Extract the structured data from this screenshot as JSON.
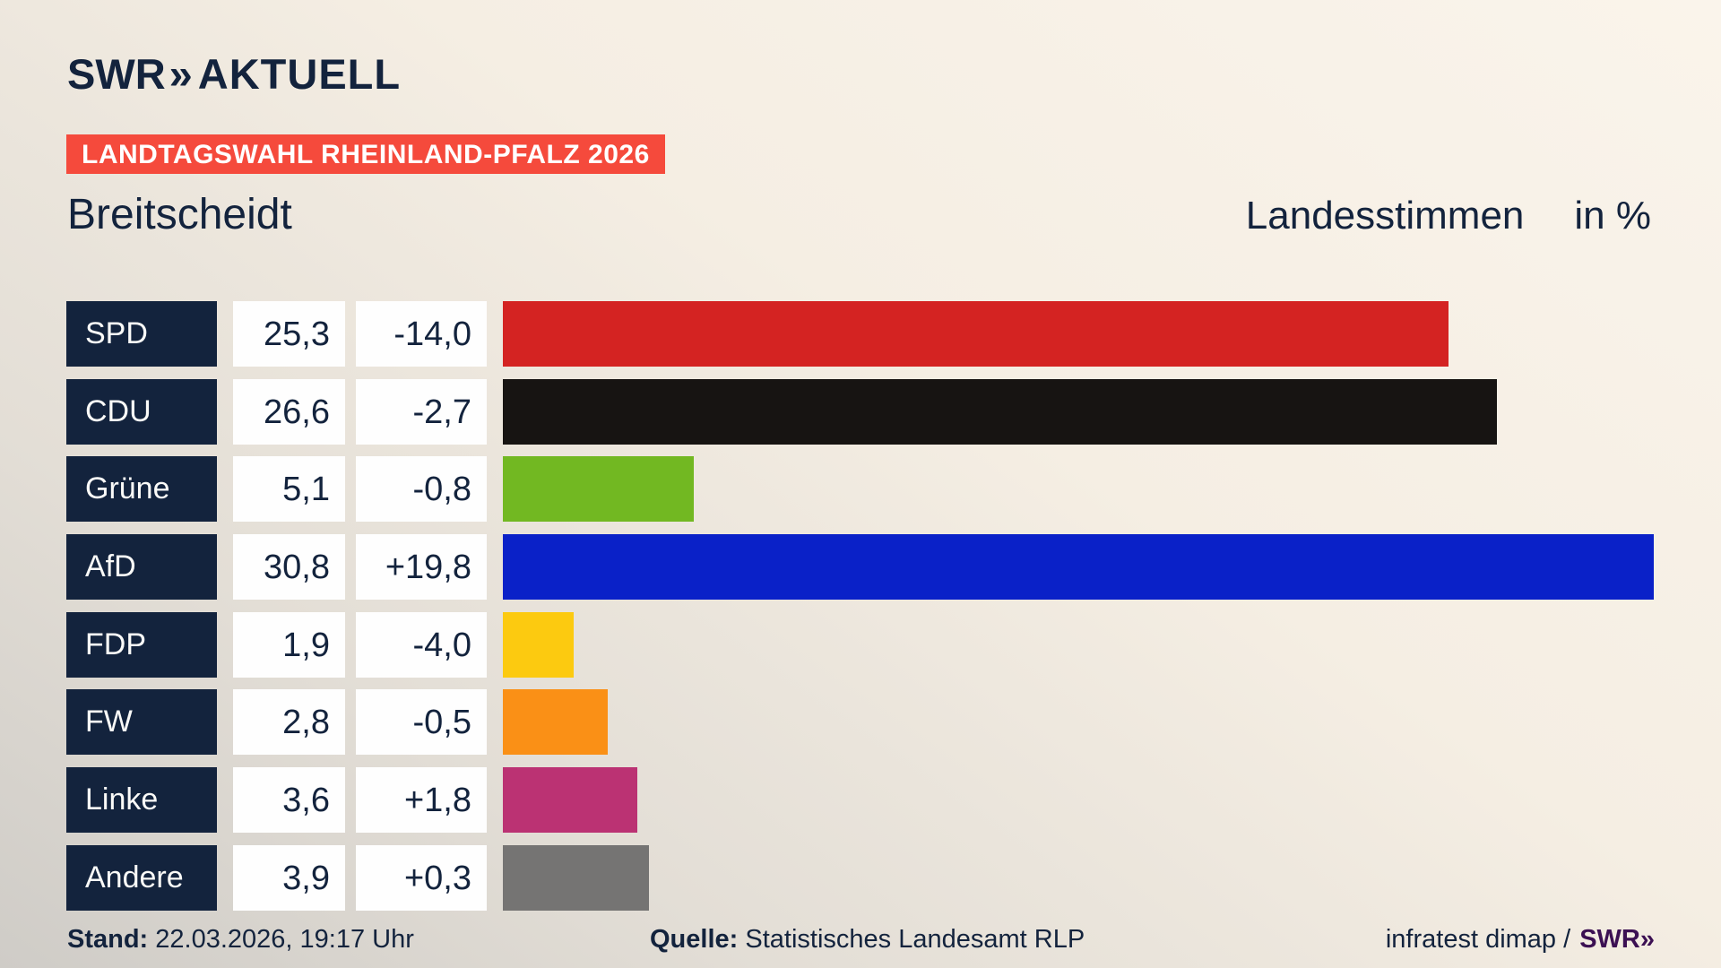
{
  "brand": {
    "name": "SWR",
    "chevrons": "»",
    "suffix": "AKTUELL"
  },
  "banner": {
    "label": "LANDTAGSWAHL RHEINLAND-PFALZ 2026",
    "bg": "#f54a3c"
  },
  "header": {
    "title": "Breitscheidt",
    "series_label": "Landesstimmen",
    "unit_label": "in %"
  },
  "chart_data": {
    "type": "bar",
    "orientation": "horizontal",
    "title": "Breitscheidt",
    "legend": "Landesstimmen in %",
    "unit": "%",
    "xlim": [
      0,
      30.8
    ],
    "grid": false,
    "categories": [
      "SPD",
      "CDU",
      "Grüne",
      "AfD",
      "FDP",
      "FW",
      "Linke",
      "Andere"
    ],
    "values": [
      25.3,
      26.6,
      5.1,
      30.8,
      1.9,
      2.8,
      3.6,
      3.9
    ],
    "value_labels": [
      "25,3",
      "26,6",
      "5,1",
      "30,8",
      "1,9",
      "2,8",
      "3,6",
      "3,9"
    ],
    "changes": [
      "-14,0",
      "-2,7",
      "-0,8",
      "+19,8",
      "-4,0",
      "-0,5",
      "+1,8",
      "+0,3"
    ],
    "colors": [
      "#d42322",
      "#171412",
      "#72b822",
      "#0a21c8",
      "#fcca10",
      "#fa9016",
      "#bb3273",
      "#757473"
    ]
  },
  "footer": {
    "stand_label": "Stand:",
    "stand_value": " 22.03.2026, 19:17 Uhr",
    "quelle_label": "Quelle:",
    "quelle_value": " Statistisches Landesamt RLP",
    "credit_text": "infratest dimap /",
    "credit_brand": "SWR",
    "credit_chevrons": "»"
  },
  "colors": {
    "navy": "#13233d",
    "banner_red": "#f54a3c",
    "box_white": "#fefefe",
    "brand_purple": "#3c1053",
    "background_top": "#faf4eb",
    "background_bottom": "#cfccc7"
  }
}
